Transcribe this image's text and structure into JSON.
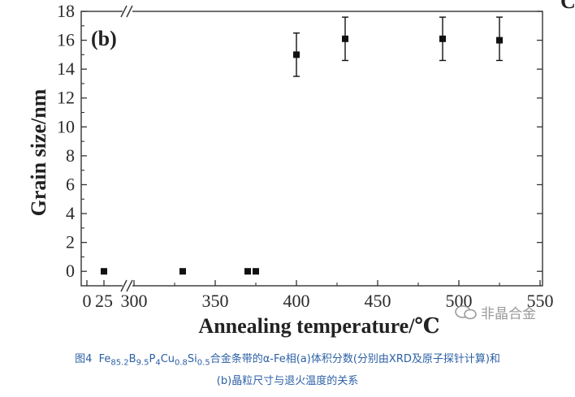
{
  "chart_data": {
    "type": "scatter",
    "panel_label": "(b)",
    "xlabel": "Annealing temperature/℃",
    "ylabel": "Grain size/nm",
    "xlim": [
      300,
      550
    ],
    "ylim": [
      -1,
      18
    ],
    "x_axis_break": true,
    "x_ticks_pre_break": [
      "0",
      "25"
    ],
    "x_ticks": [
      300,
      350,
      400,
      450,
      500,
      550
    ],
    "y_ticks": [
      0,
      2,
      4,
      6,
      8,
      10,
      12,
      14,
      16,
      18
    ],
    "top_right_label": "C",
    "points": [
      {
        "x": 25,
        "y": 0
      },
      {
        "x": 330,
        "y": 0
      },
      {
        "x": 370,
        "y": 0
      },
      {
        "x": 375,
        "y": 0
      },
      {
        "x": 400,
        "y": 15.0,
        "err_low": 13.5,
        "err_high": 16.5
      },
      {
        "x": 430,
        "y": 16.1,
        "err_low": 14.6,
        "err_high": 17.6
      },
      {
        "x": 490,
        "y": 16.1,
        "err_low": 14.6,
        "err_high": 17.6
      },
      {
        "x": 525,
        "y": 16.0,
        "err_low": 14.6,
        "err_high": 17.6
      }
    ],
    "grid": false,
    "marker": "square",
    "color": "#111111"
  },
  "watermark": {
    "text": "非晶合金"
  },
  "caption": {
    "fig_no": "图4",
    "alloy_parts": [
      {
        "t": "Fe",
        "s": "85.2"
      },
      {
        "t": "B",
        "s": "9.5"
      },
      {
        "t": "P",
        "s": "4"
      },
      {
        "t": "Cu",
        "s": "0.8"
      },
      {
        "t": "Si",
        "s": "0.5"
      }
    ],
    "line1_rest": "合金条带的α-Fe相(a)体积分数(分别由XRD及原子探针计算)和",
    "line2": "(b)晶粒尺寸与退火温度的关系"
  }
}
